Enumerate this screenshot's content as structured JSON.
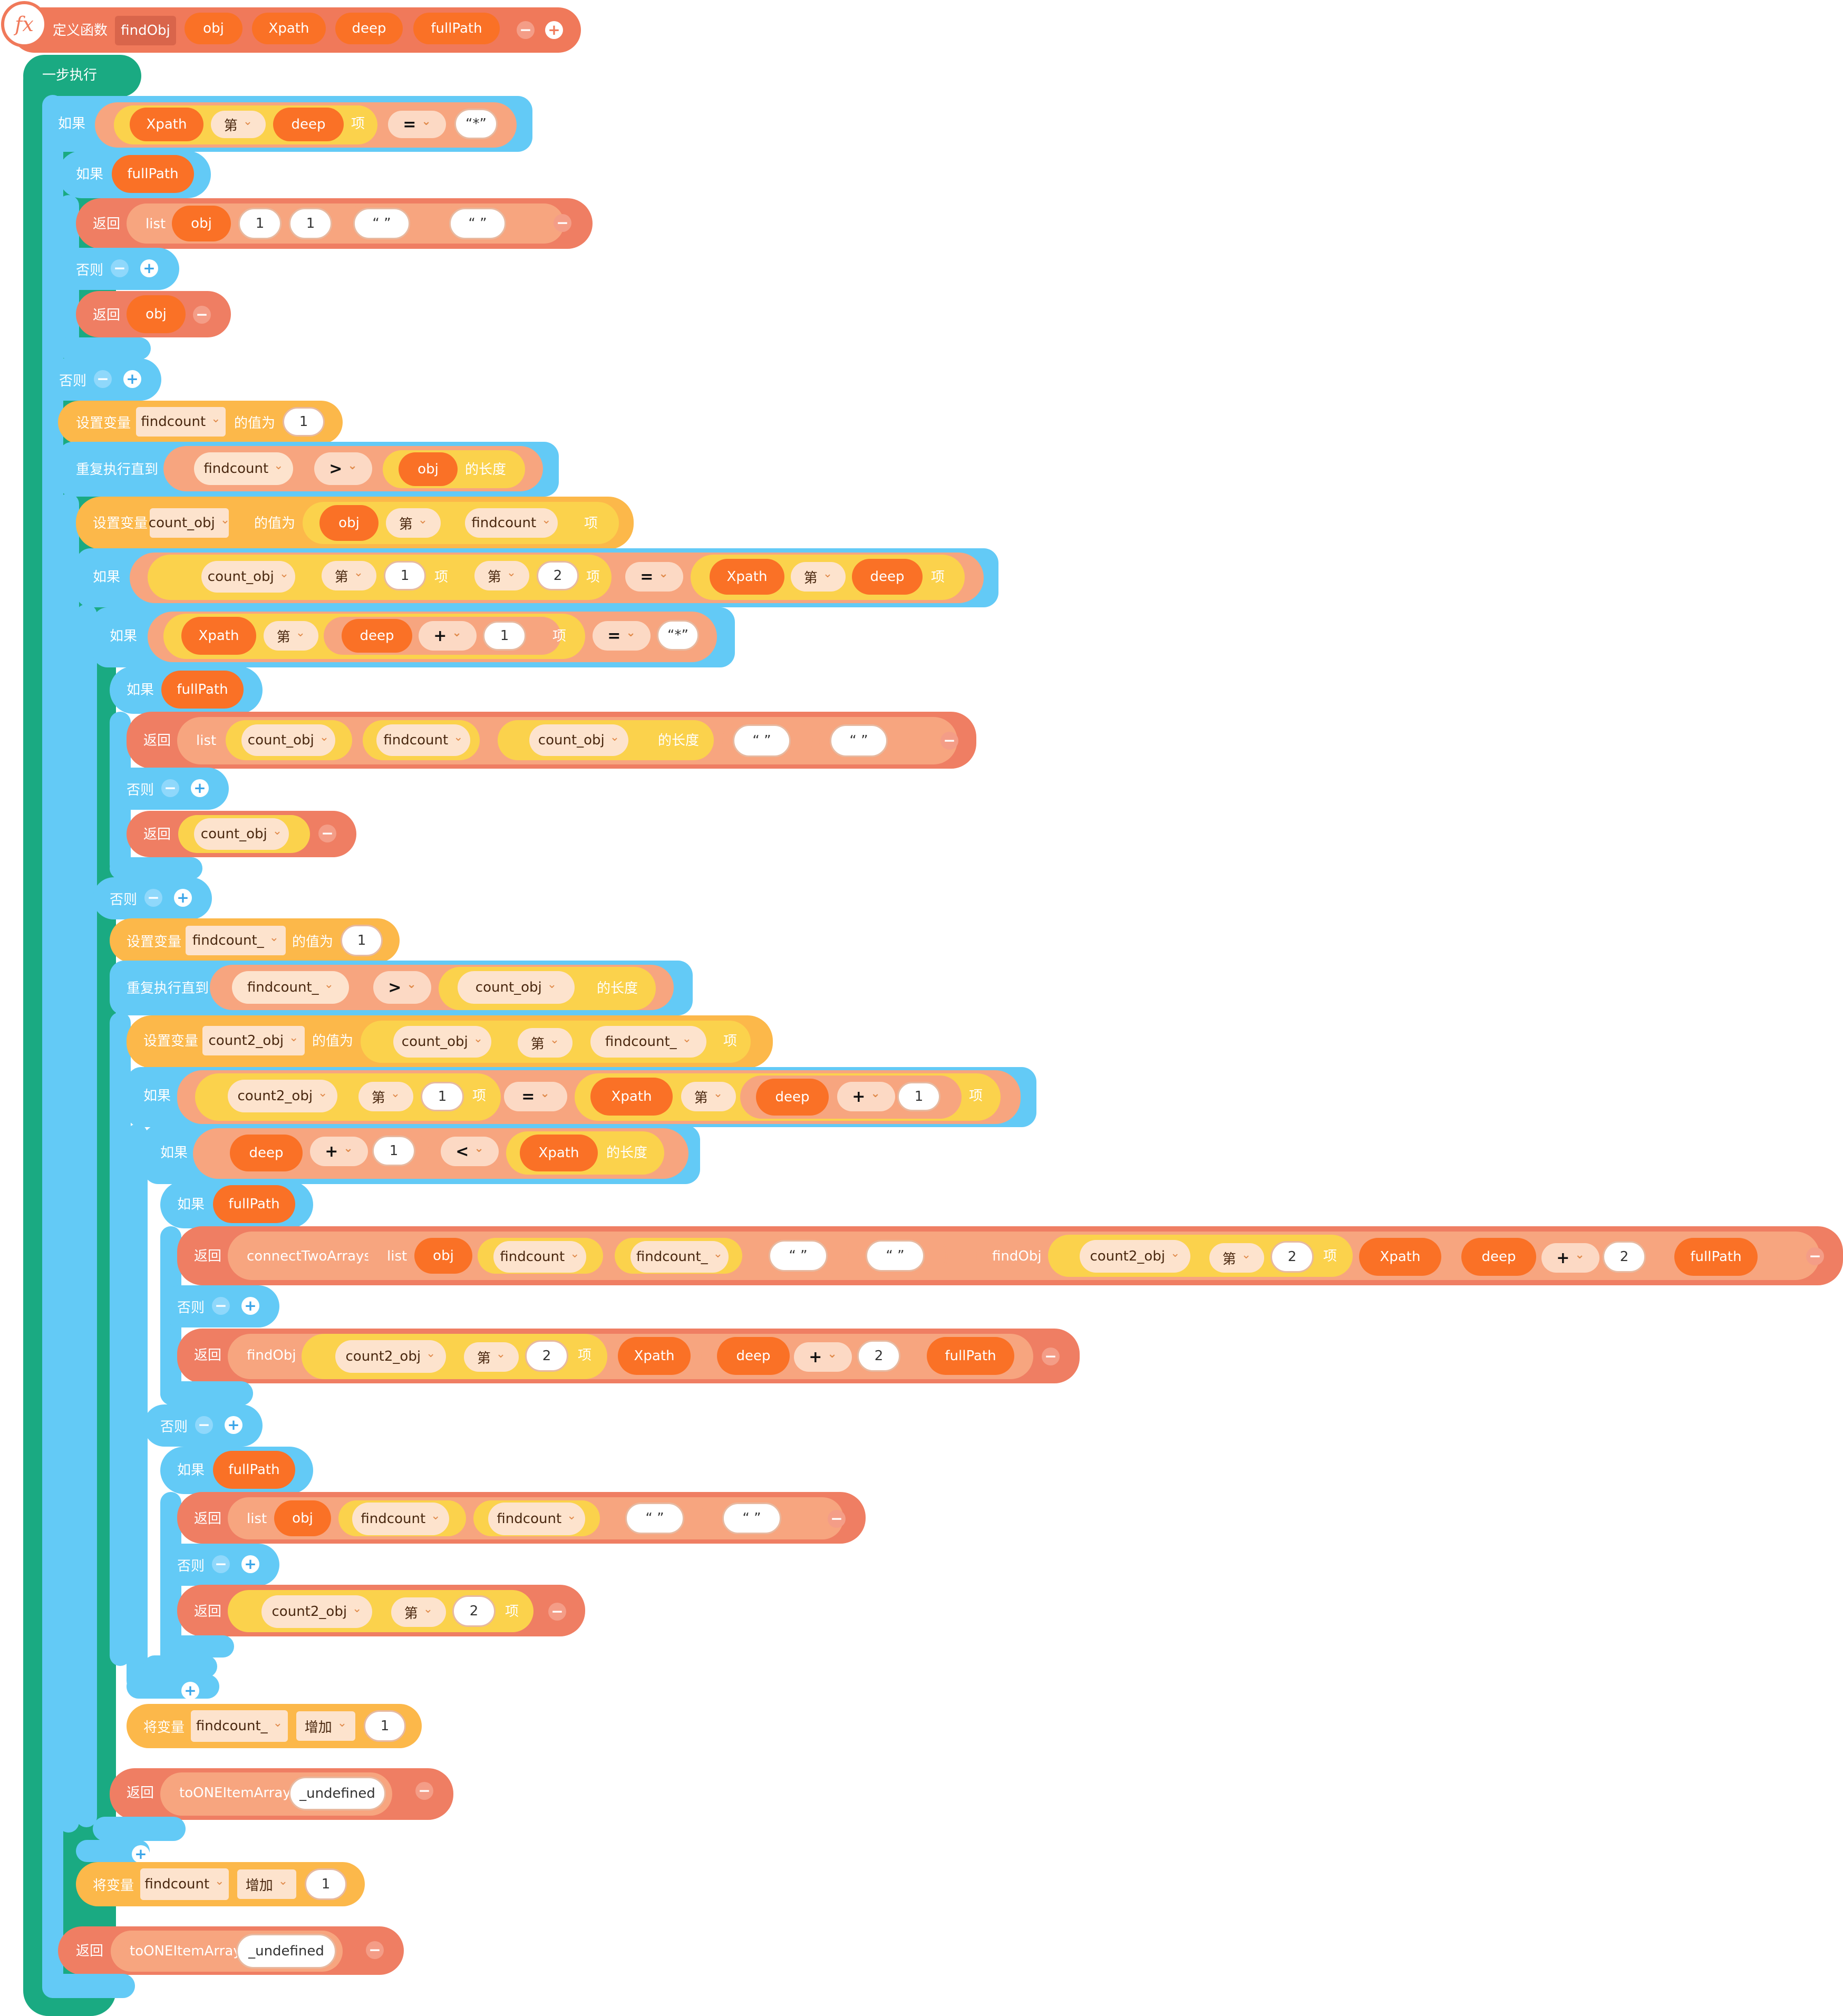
{
  "def": {
    "label": "定义函数",
    "func_name": "findObj",
    "params": [
      "obj",
      "Xpath",
      "deep",
      "fullPath"
    ]
  },
  "kw": {
    "step": "一步执行",
    "if": "如果",
    "else": "否则",
    "return": "返回",
    "set_var": "设置变量",
    "value_is": "的值为",
    "repeat_until": "重复执行直到",
    "change_var": "将变量",
    "increase": "增加",
    "nth": "第",
    "item": "项",
    "length": "的长度",
    "list": "list"
  },
  "ops": {
    "eq": "=",
    "gt": ">",
    "lt": "<",
    "plus": "+"
  },
  "vars": {
    "findcount": "findcount",
    "findcount_": "findcount_",
    "count_obj": "count_obj",
    "count2_obj": "count2_obj"
  },
  "funcs": {
    "connectTwoArrays": "connectTwoArrays",
    "findObj": "findObj",
    "toONEItemArray": "toONEItemArray"
  },
  "literals": {
    "star": "“*”",
    "empty": "“ ”",
    "one": "1",
    "two": "2",
    "undefined": "_undefined"
  },
  "controls": {
    "minus": "−",
    "plus": "+"
  },
  "colors": {
    "function_block": "#f0795a",
    "control_block": "#63caf6",
    "step_block": "#1aaa82",
    "return_block": "#ef7e63",
    "variable_block": "#fcb84a",
    "list_block": "#fbd24c",
    "argument_pill": "#fa7126"
  }
}
